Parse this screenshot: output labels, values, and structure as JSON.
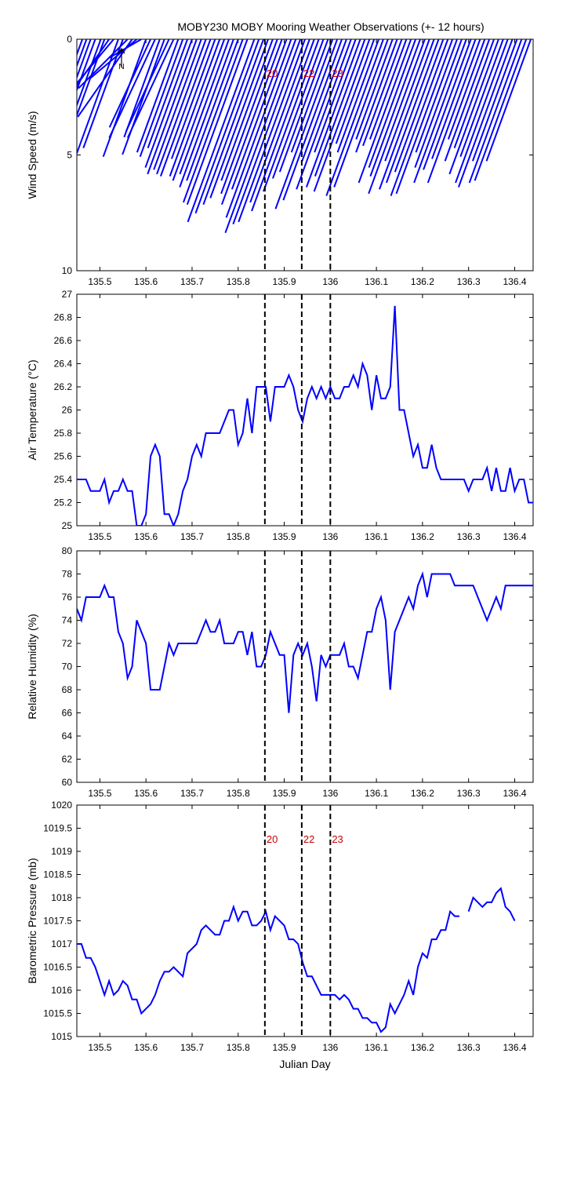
{
  "figure": {
    "title": "MOBY230 MOBY Mooring Weather Observations (+- 12 hours)",
    "line_color": "#0000ff",
    "marker_color": "#cc0000",
    "north_label": "N"
  },
  "markers": [
    {
      "x": 135.858,
      "label": "20"
    },
    {
      "x": 135.938,
      "label": "22"
    },
    {
      "x": 136.0,
      "label": "23"
    }
  ],
  "chart_data": [
    {
      "type": "line",
      "subtype": "wind-stick",
      "xlabel": "Julian Day",
      "ylabel": "Wind Speed (m/s)",
      "xlim": [
        135.45,
        136.44
      ],
      "ylim": [
        0,
        10
      ],
      "y_reversed": true,
      "xticks": [
        135.5,
        135.6,
        135.7,
        135.8,
        135.9,
        136,
        136.1,
        136.2,
        136.3,
        136.4
      ],
      "yticks": [
        0,
        5,
        10
      ],
      "marker_labels_shown": true,
      "series": [
        {
          "x": [
            135.45,
            135.462,
            135.471,
            135.48,
            135.49,
            135.502,
            135.51,
            135.52,
            135.53,
            135.54,
            135.55,
            135.56,
            135.57,
            135.58,
            135.59,
            135.6,
            135.61,
            135.62,
            135.63,
            135.64,
            135.65,
            135.66,
            135.67,
            135.68,
            135.69,
            135.7,
            135.71,
            135.72,
            135.73,
            135.74,
            135.75,
            135.76,
            135.77,
            135.78,
            135.79,
            135.8,
            135.81,
            135.82,
            135.835,
            135.845,
            135.855,
            135.865,
            135.875,
            135.885,
            135.895,
            135.905,
            135.915,
            135.925,
            135.935,
            135.945,
            135.955,
            135.965,
            135.975,
            135.985,
            135.995,
            136.005,
            136.015,
            136.025,
            136.035,
            136.045,
            136.055,
            136.065,
            136.075,
            136.085,
            136.095,
            136.105,
            136.115,
            136.125,
            136.135,
            136.145,
            136.155,
            136.165,
            136.175,
            136.185,
            136.195,
            136.205,
            136.215,
            136.225,
            136.235,
            136.245,
            136.255,
            136.265,
            136.275,
            136.285,
            136.295,
            136.305,
            136.315,
            136.325,
            136.335,
            136.345,
            136.355,
            136.365,
            136.375,
            136.385,
            136.395,
            136.405,
            136.415,
            136.425,
            136.435
          ],
          "speed": [
            6.1,
            6.3,
            5.8,
            4.5,
            5.2,
            6.6,
            5.2,
            4.0,
            3.0,
            6.4,
            5.0,
            3.0,
            4.1,
            2.6,
            1.6,
            5.4,
            4.2,
            4.7,
            4.5,
            5.3,
            4.4,
            4.7,
            5.2,
            5.4,
            5.0,
            5.9,
            6.2,
            6.0,
            6.2,
            6.3,
            5.5,
            6.3,
            6.5,
            6.2,
            6.8,
            6.5,
            7.5,
            7.6,
            8.4,
            8.0,
            7.6,
            7.3,
            6.5,
            7.1,
            7.6,
            6.9,
            8.2,
            8.9,
            8.5,
            8.4,
            7.5,
            7.9,
            7.0,
            6.4,
            6.1,
            5.2,
            7.8,
            7.4,
            5.6,
            6.9,
            5.2,
            6.8,
            6.3,
            7.0,
            4.8,
            5.2,
            7.2,
            6.8,
            4.6,
            5.2,
            4.9,
            4.6,
            6.6,
            5.9,
            6.3,
            7.1,
            5.6,
            6.9,
            6.6,
            6.1,
            7.2,
            7.1,
            5.2,
            5.9,
            6.6,
            6.0,
            5.5,
            6.6,
            4.6,
            5.6,
            5.0,
            6.2,
            5.4,
            6.6,
            6.8,
            5.6,
            6.6,
            6.5,
            5.6
          ],
          "direction_deg": [
            200,
            200,
            200,
            200,
            200,
            200,
            200,
            215,
            220,
            200,
            200,
            225,
            215,
            230,
            240,
            200,
            205,
            205,
            200,
            200,
            205,
            205,
            200,
            200,
            200,
            200,
            200,
            200,
            200,
            200,
            200,
            200,
            200,
            200,
            200,
            200,
            200,
            200,
            200,
            200,
            200,
            200,
            200,
            200,
            200,
            200,
            200,
            200,
            200,
            200,
            200,
            200,
            200,
            200,
            200,
            200,
            200,
            200,
            200,
            200,
            200,
            200,
            200,
            200,
            200,
            200,
            200,
            200,
            200,
            200,
            200,
            200,
            200,
            200,
            200,
            200,
            200,
            200,
            200,
            200,
            200,
            200,
            200,
            200,
            200,
            200,
            200,
            200,
            200,
            200,
            200,
            200,
            200,
            200,
            200,
            200,
            200,
            200,
            200
          ]
        }
      ]
    },
    {
      "type": "line",
      "xlabel": "",
      "ylabel": "Air Temperature (°C)",
      "xlim": [
        135.45,
        136.44
      ],
      "ylim": [
        25,
        27
      ],
      "xticks": [
        135.5,
        135.6,
        135.7,
        135.8,
        135.9,
        136,
        136.1,
        136.2,
        136.3,
        136.4
      ],
      "yticks": [
        25,
        25.2,
        25.4,
        25.6,
        25.8,
        26,
        26.2,
        26.4,
        26.6,
        26.8,
        27
      ],
      "marker_labels_shown": false,
      "series": [
        {
          "x": [
            135.45,
            135.46,
            135.47,
            135.48,
            135.49,
            135.5,
            135.51,
            135.52,
            135.53,
            135.54,
            135.55,
            135.56,
            135.57,
            135.58,
            135.59,
            135.6,
            135.61,
            135.62,
            135.63,
            135.64,
            135.65,
            135.66,
            135.67,
            135.68,
            135.69,
            135.7,
            135.71,
            135.72,
            135.73,
            135.74,
            135.75,
            135.76,
            135.77,
            135.78,
            135.79,
            135.8,
            135.81,
            135.82,
            135.83,
            135.84,
            135.85,
            135.86,
            135.87,
            135.88,
            135.89,
            135.9,
            135.91,
            135.92,
            135.93,
            135.94,
            135.95,
            135.96,
            135.97,
            135.98,
            135.99,
            136,
            136.01,
            136.02,
            136.03,
            136.04,
            136.05,
            136.06,
            136.07,
            136.08,
            136.09,
            136.1,
            136.11,
            136.12,
            136.13,
            136.14,
            136.15,
            136.16,
            136.17,
            136.18,
            136.19,
            136.2,
            136.21,
            136.22,
            136.23,
            136.24,
            136.25,
            136.26,
            136.27,
            136.28,
            136.29,
            136.3,
            136.31,
            136.32,
            136.33,
            136.34,
            136.35,
            136.36,
            136.37,
            136.38,
            136.39,
            136.4,
            136.41,
            136.42,
            136.43,
            136.44
          ],
          "y": [
            25.4,
            25.4,
            25.4,
            25.3,
            25.3,
            25.3,
            25.4,
            25.2,
            25.3,
            25.3,
            25.4,
            25.3,
            25.3,
            25.0,
            25.0,
            25.1,
            25.6,
            25.7,
            25.6,
            25.1,
            25.1,
            25.0,
            25.1,
            25.3,
            25.4,
            25.6,
            25.7,
            25.6,
            25.8,
            25.8,
            25.8,
            25.8,
            25.9,
            26.0,
            26.0,
            25.7,
            25.8,
            26.1,
            25.8,
            26.2,
            26.2,
            26.2,
            25.9,
            26.2,
            26.2,
            26.2,
            26.3,
            26.2,
            26.0,
            25.9,
            26.1,
            26.2,
            26.1,
            26.2,
            26.1,
            26.2,
            26.1,
            26.1,
            26.2,
            26.2,
            26.3,
            26.2,
            26.4,
            26.3,
            26.0,
            26.3,
            26.1,
            26.1,
            26.2,
            26.9,
            26.0,
            26.0,
            25.8,
            25.6,
            25.7,
            25.5,
            25.5,
            25.7,
            25.5,
            25.4,
            25.4,
            25.4,
            25.4,
            25.4,
            25.4,
            25.3,
            25.4,
            25.4,
            25.4,
            25.5,
            25.3,
            25.5,
            25.3,
            25.3,
            25.5,
            25.3,
            25.4,
            25.4,
            25.2,
            25.2
          ]
        }
      ]
    },
    {
      "type": "line",
      "xlabel": "",
      "ylabel": "Relative Humidity (%)",
      "xlim": [
        135.45,
        136.44
      ],
      "ylim": [
        60,
        80
      ],
      "xticks": [
        135.5,
        135.6,
        135.7,
        135.8,
        135.9,
        136,
        136.1,
        136.2,
        136.3,
        136.4
      ],
      "yticks": [
        60,
        62,
        64,
        66,
        68,
        70,
        72,
        74,
        76,
        78,
        80
      ],
      "marker_labels_shown": false,
      "series": [
        {
          "x": [
            135.45,
            135.46,
            135.47,
            135.48,
            135.49,
            135.5,
            135.51,
            135.52,
            135.53,
            135.54,
            135.55,
            135.56,
            135.57,
            135.58,
            135.59,
            135.6,
            135.61,
            135.62,
            135.63,
            135.64,
            135.65,
            135.66,
            135.67,
            135.68,
            135.69,
            135.7,
            135.71,
            135.72,
            135.73,
            135.74,
            135.75,
            135.76,
            135.77,
            135.78,
            135.79,
            135.8,
            135.81,
            135.82,
            135.83,
            135.84,
            135.85,
            135.86,
            135.87,
            135.88,
            135.89,
            135.9,
            135.91,
            135.92,
            135.93,
            135.94,
            135.95,
            135.96,
            135.97,
            135.98,
            135.99,
            136,
            136.01,
            136.02,
            136.03,
            136.04,
            136.05,
            136.06,
            136.07,
            136.08,
            136.09,
            136.1,
            136.11,
            136.12,
            136.13,
            136.14,
            136.15,
            136.16,
            136.17,
            136.18,
            136.19,
            136.2,
            136.21,
            136.22,
            136.23,
            136.24,
            136.25,
            136.26,
            136.27,
            136.28,
            136.29,
            136.3,
            136.31,
            136.32,
            136.33,
            136.34,
            136.35,
            136.36,
            136.37,
            136.38,
            136.39,
            136.4,
            136.41,
            136.42,
            136.43,
            136.44
          ],
          "y": [
            75,
            74,
            76,
            76,
            76,
            76,
            77,
            76,
            76,
            73,
            72,
            69,
            70,
            74,
            73,
            72,
            68,
            68,
            68,
            70,
            72,
            71,
            72,
            72,
            72,
            72,
            72,
            73,
            74,
            73,
            73,
            74,
            72,
            72,
            72,
            73,
            73,
            71,
            73,
            70,
            70,
            71,
            73,
            72,
            71,
            71,
            66,
            71,
            72,
            71,
            72,
            70,
            67,
            71,
            70,
            71,
            71,
            71,
            72,
            70,
            70,
            69,
            71,
            73,
            73,
            75,
            76,
            74,
            68,
            73,
            74,
            75,
            76,
            75,
            77,
            78,
            76,
            78,
            78,
            78,
            78,
            78,
            77,
            77,
            77,
            77,
            77,
            76,
            75,
            74,
            75,
            76,
            75,
            77,
            77,
            77,
            77,
            77,
            77,
            77
          ]
        }
      ]
    },
    {
      "type": "line",
      "xlabel": "Julian Day",
      "ylabel": "Barometric Pressure (mb)",
      "xlim": [
        135.45,
        136.44
      ],
      "ylim": [
        1015,
        1020
      ],
      "xticks": [
        135.5,
        135.6,
        135.7,
        135.8,
        135.9,
        136,
        136.1,
        136.2,
        136.3,
        136.4
      ],
      "yticks": [
        1015,
        1015.5,
        1016,
        1016.5,
        1017,
        1017.5,
        1018,
        1018.5,
        1019,
        1019.5,
        1020
      ],
      "marker_labels_shown": true,
      "series": [
        {
          "x": [
            135.45,
            135.46,
            135.47,
            135.48,
            135.49,
            135.5,
            135.51,
            135.52,
            135.53,
            135.54,
            135.55,
            135.56,
            135.57,
            135.58,
            135.59,
            135.6,
            135.61,
            135.62,
            135.63,
            135.64,
            135.65,
            135.66,
            135.67,
            135.68,
            135.69,
            135.7,
            135.71,
            135.72,
            135.73,
            135.74,
            135.75,
            135.76,
            135.77,
            135.78,
            135.79,
            135.8,
            135.81,
            135.82,
            135.83,
            135.84,
            135.85,
            135.86,
            135.87,
            135.88,
            135.89,
            135.9,
            135.91,
            135.92,
            135.93,
            135.94,
            135.95,
            135.96,
            135.97,
            135.98,
            135.99,
            136,
            136.01,
            136.02,
            136.03,
            136.04,
            136.05,
            136.06,
            136.07,
            136.08,
            136.09,
            136.1,
            136.11,
            136.12,
            136.13,
            136.14,
            136.15,
            136.16,
            136.17,
            136.18,
            136.19,
            136.2,
            136.21,
            136.22,
            136.23,
            136.24,
            136.25,
            136.26,
            136.27,
            136.28,
            136.29,
            136.3,
            136.31,
            136.32,
            136.33,
            136.34,
            136.35,
            136.36,
            136.37,
            136.38,
            136.39,
            136.4,
            136.41,
            136.42,
            136.43,
            136.44
          ],
          "y": [
            1017.0,
            1017.0,
            1016.7,
            1016.7,
            1016.5,
            1016.2,
            1015.9,
            1016.2,
            1015.9,
            1016.0,
            1016.2,
            1016.1,
            1015.8,
            1015.8,
            1015.5,
            1015.6,
            1015.7,
            1015.9,
            1016.2,
            1016.4,
            1016.4,
            1016.5,
            1016.4,
            1016.3,
            1016.8,
            1016.9,
            1017.0,
            1017.3,
            1017.4,
            1017.3,
            1017.2,
            1017.2,
            1017.5,
            1017.5,
            1017.8,
            1017.5,
            1017.7,
            1017.7,
            1017.4,
            1017.4,
            1017.5,
            1017.7,
            1017.3,
            1017.6,
            1017.5,
            1017.4,
            1017.1,
            1017.1,
            1017.0,
            1016.6,
            1016.3,
            1016.3,
            1016.1,
            1015.9,
            1015.9,
            1015.9,
            1015.9,
            1015.8,
            1015.9,
            1015.8,
            1015.6,
            1015.6,
            1015.4,
            1015.4,
            1015.3,
            1015.3,
            1015.1,
            1015.2,
            1015.7,
            1015.5,
            1015.7,
            1015.9,
            1016.2,
            1015.9,
            1016.5,
            1016.8,
            1016.7,
            1017.1,
            1017.1,
            1017.3,
            1017.3,
            1017.7,
            1017.6,
            1017.6,
            null,
            1017.7,
            1018.0,
            1017.9,
            1017.8,
            1017.9,
            1017.9,
            1018.1,
            1018.2,
            1017.8,
            1017.7,
            1017.5,
            null,
            null,
            null,
            null
          ]
        }
      ]
    }
  ]
}
